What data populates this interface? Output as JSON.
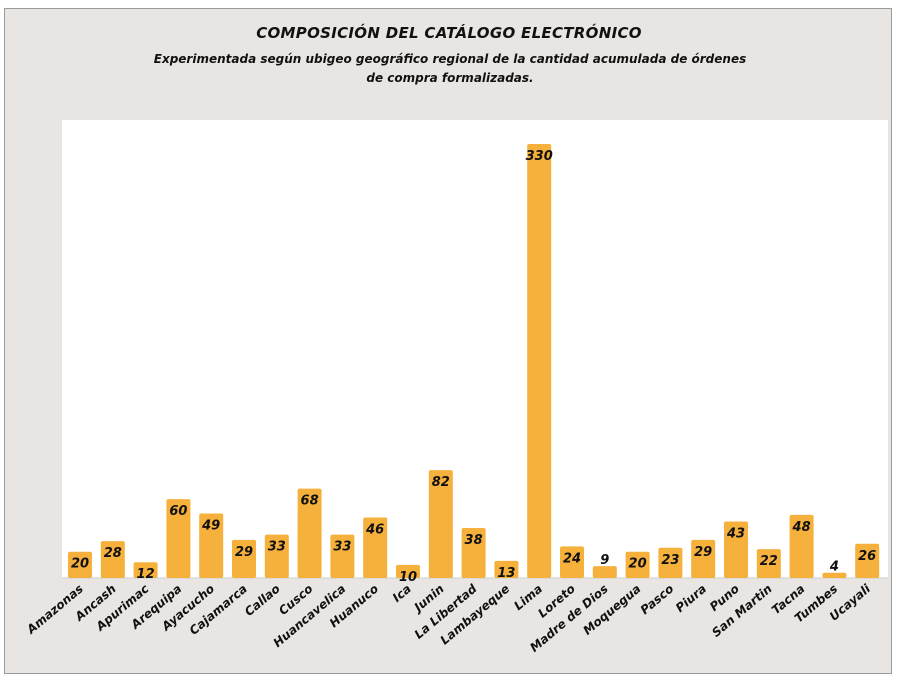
{
  "chart_data": {
    "type": "bar",
    "title": "COMPOSICIÓN DEL CATÁLOGO  ELECTRÓNICO",
    "subtitle": "Experimentada según ubigeo geográfico regional de la cantidad acumulada de órdenes de compra formalizadas.",
    "categories": [
      "Amazonas",
      "Ancash",
      "Apurimac",
      "Arequipa",
      "Ayacucho",
      "Cajamarca",
      "Callao",
      "Cusco",
      "Huancavelica",
      "Huanuco",
      "Ica",
      "Junin",
      "La Libertad",
      "Lambayeque",
      "Lima",
      "Loreto",
      "Madre de Dios",
      "Moquegua",
      "Pasco",
      "Piura",
      "Puno",
      "San Martin",
      "Tacna",
      "Tumbes",
      "Ucayali"
    ],
    "values": [
      20,
      28,
      12,
      60,
      49,
      29,
      33,
      68,
      33,
      46,
      10,
      82,
      38,
      13,
      330,
      24,
      9,
      20,
      23,
      29,
      43,
      22,
      48,
      4,
      26
    ],
    "ylim": [
      0,
      330
    ],
    "bar_color": "#f6b03c",
    "background_color": "#e9e5e2",
    "plot_background": "#ffffff",
    "grid": false,
    "legend": "none"
  }
}
